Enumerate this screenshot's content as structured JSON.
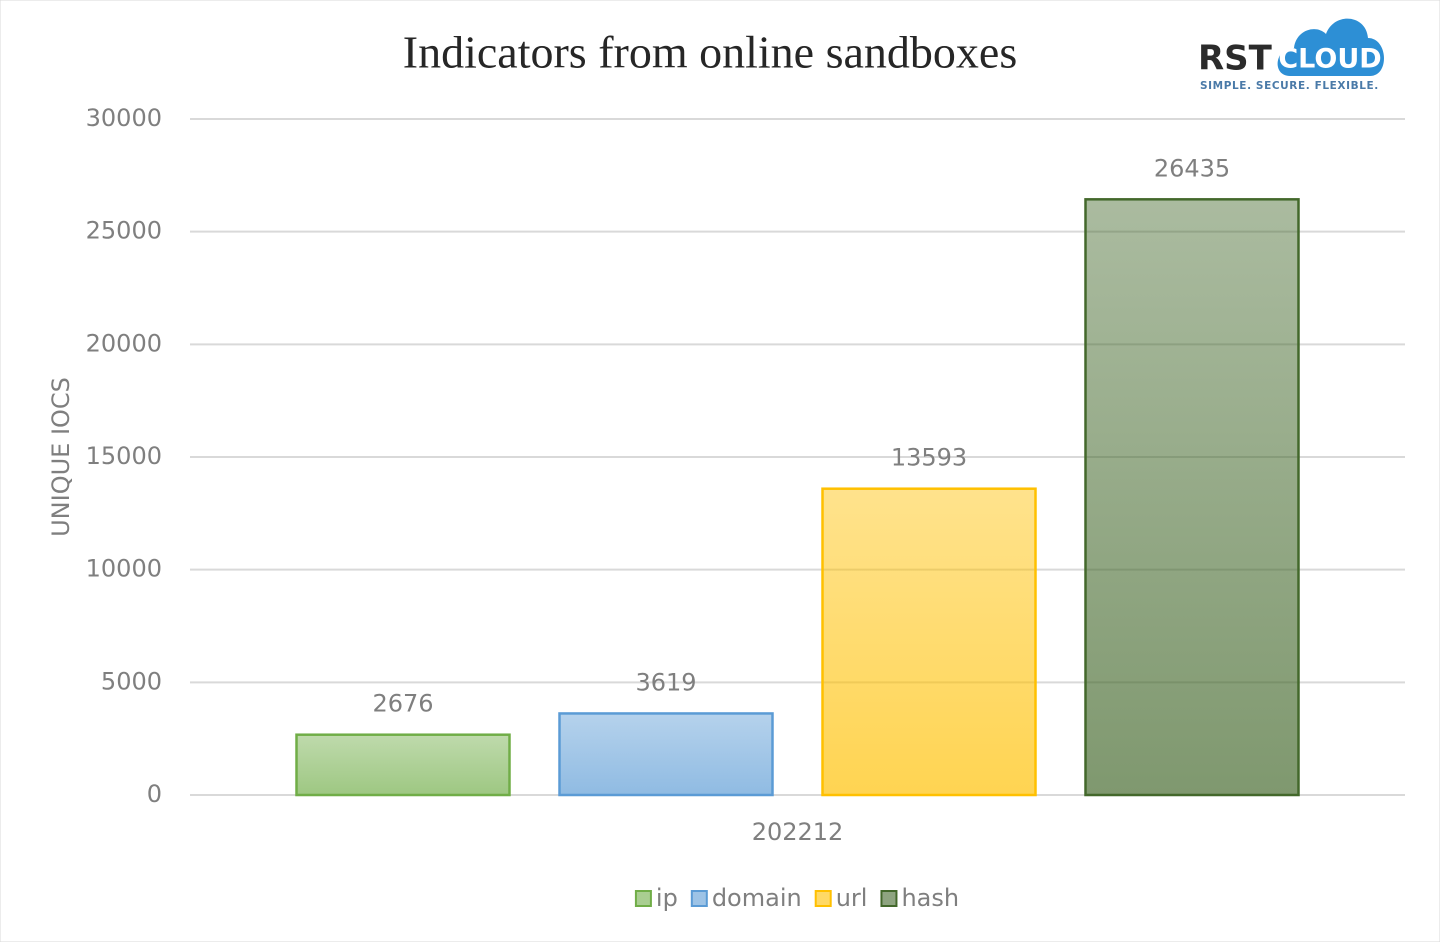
{
  "chart_data": {
    "type": "bar",
    "title": "Indicators from online sandboxes",
    "y_label": "UNIQUE IOCS",
    "categories": [
      "202212"
    ],
    "series": [
      {
        "name": "ip",
        "color": "#70ad47",
        "values": [
          2676
        ]
      },
      {
        "name": "domain",
        "color": "#5b9bd5",
        "values": [
          3619
        ]
      },
      {
        "name": "url",
        "color": "#ffc000",
        "values": [
          13593
        ]
      },
      {
        "name": "hash",
        "color": "#43682b",
        "values": [
          26435
        ]
      }
    ],
    "ylim": [
      0,
      30000
    ],
    "yticks": [
      0,
      5000,
      10000,
      15000,
      20000,
      25000,
      30000
    ],
    "grid": true,
    "legend": "bottom"
  },
  "logo": {
    "brand": "RST",
    "cloud": "CLOUD",
    "tagline": "SIMPLE.  SECURE.  FLEXIBLE."
  }
}
